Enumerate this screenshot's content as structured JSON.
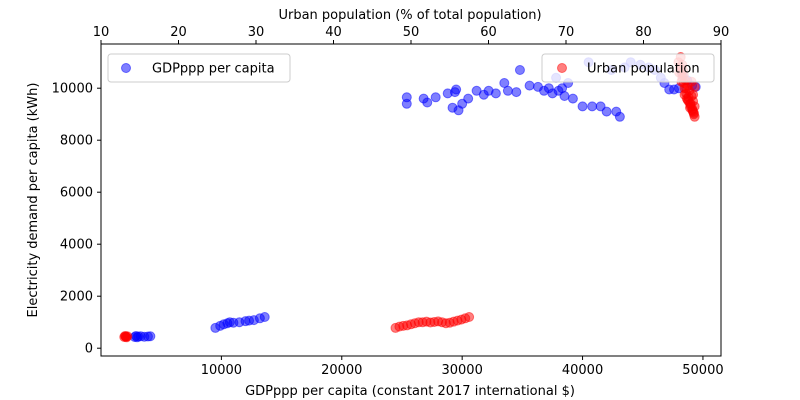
{
  "chart_data": {
    "type": "scatter",
    "title": "",
    "top_title_partial": "[ ]",
    "xlabel": "GDPppp per capita (constant 2017 international $)",
    "x2label": "Urban population (% of total population)",
    "ylabel": "Electricity demand per capita (kWh)",
    "xlim": [
      0,
      51500
    ],
    "x2lim": [
      10,
      90
    ],
    "ylim": [
      -300,
      11700
    ],
    "xticks": [
      10000,
      20000,
      30000,
      40000,
      50000
    ],
    "x2ticks": [
      10,
      20,
      30,
      40,
      50,
      60,
      70,
      80,
      90
    ],
    "yticks": [
      0,
      2000,
      4000,
      6000,
      8000,
      10000
    ],
    "grid": false,
    "legends": [
      {
        "placement": "upper-left",
        "series": "GDPppp per capita"
      },
      {
        "placement": "upper-right",
        "series": "Urban population"
      }
    ],
    "series": [
      {
        "name": "GDPppp per capita",
        "color": "#0000ff",
        "axis": "bottom",
        "points": [
          [
            2800,
            430
          ],
          [
            2900,
            470
          ],
          [
            3100,
            450
          ],
          [
            3300,
            460
          ],
          [
            3600,
            440
          ],
          [
            3900,
            450
          ],
          [
            4100,
            460
          ],
          [
            3000,
            420
          ],
          [
            9500,
            780
          ],
          [
            9900,
            860
          ],
          [
            10200,
            920
          ],
          [
            10500,
            960
          ],
          [
            10700,
            1000
          ],
          [
            11000,
            980
          ],
          [
            11500,
            1000
          ],
          [
            12000,
            1040
          ],
          [
            12300,
            1060
          ],
          [
            12700,
            1080
          ],
          [
            13200,
            1150
          ],
          [
            13600,
            1200
          ],
          [
            25400,
            9400
          ],
          [
            25400,
            9650
          ],
          [
            26800,
            9600
          ],
          [
            27100,
            9450
          ],
          [
            27800,
            9650
          ],
          [
            28800,
            9800
          ],
          [
            29200,
            9250
          ],
          [
            29400,
            9850
          ],
          [
            29500,
            9950
          ],
          [
            29700,
            9150
          ],
          [
            30000,
            9400
          ],
          [
            30500,
            9600
          ],
          [
            31200,
            9900
          ],
          [
            31800,
            9750
          ],
          [
            32200,
            9900
          ],
          [
            32800,
            9800
          ],
          [
            33500,
            10200
          ],
          [
            33800,
            9900
          ],
          [
            34500,
            9850
          ],
          [
            34800,
            10700
          ],
          [
            35600,
            10100
          ],
          [
            36300,
            10050
          ],
          [
            36800,
            9900
          ],
          [
            37200,
            10000
          ],
          [
            37500,
            9800
          ],
          [
            37800,
            10400
          ],
          [
            38000,
            9900
          ],
          [
            38300,
            10000
          ],
          [
            38500,
            9700
          ],
          [
            38800,
            10200
          ],
          [
            39200,
            9600
          ],
          [
            40000,
            9300
          ],
          [
            40500,
            11000
          ],
          [
            40800,
            9300
          ],
          [
            41500,
            9300
          ],
          [
            42000,
            9100
          ],
          [
            42400,
            10700
          ],
          [
            42800,
            9100
          ],
          [
            43100,
            8900
          ],
          [
            43500,
            10800
          ],
          [
            44000,
            11000
          ],
          [
            44800,
            10900
          ],
          [
            45500,
            10800
          ],
          [
            46000,
            10700
          ],
          [
            46500,
            10400
          ],
          [
            46800,
            10200
          ],
          [
            47200,
            9950
          ],
          [
            47600,
            9950
          ],
          [
            48000,
            10000
          ],
          [
            48300,
            10500
          ],
          [
            48700,
            10300
          ],
          [
            49100,
            10100
          ],
          [
            49400,
            10050
          ]
        ]
      },
      {
        "name": "Urban population",
        "color": "#ff0000",
        "axis": "top",
        "points": [
          [
            13.0,
            430
          ],
          [
            13.1,
            470
          ],
          [
            13.2,
            450
          ],
          [
            13.3,
            420
          ],
          [
            13.4,
            460
          ],
          [
            13.2,
            440
          ],
          [
            48.0,
            780
          ],
          [
            48.5,
            830
          ],
          [
            49.0,
            860
          ],
          [
            49.5,
            880
          ],
          [
            50.0,
            920
          ],
          [
            50.5,
            960
          ],
          [
            51.0,
            1000
          ],
          [
            51.5,
            1000
          ],
          [
            52.0,
            1020
          ],
          [
            52.5,
            990
          ],
          [
            53.0,
            1010
          ],
          [
            53.5,
            1030
          ],
          [
            54.0,
            1000
          ],
          [
            54.5,
            960
          ],
          [
            55.0,
            980
          ],
          [
            55.5,
            1020
          ],
          [
            56.0,
            1060
          ],
          [
            56.5,
            1100
          ],
          [
            57.0,
            1150
          ],
          [
            57.5,
            1200
          ],
          [
            84.5,
            11000
          ],
          [
            84.7,
            10800
          ],
          [
            84.9,
            10600
          ],
          [
            85.0,
            10400
          ],
          [
            85.2,
            10200
          ],
          [
            85.3,
            10000
          ],
          [
            85.5,
            9800
          ],
          [
            85.6,
            9600
          ],
          [
            85.8,
            9500
          ],
          [
            86.0,
            9400
          ],
          [
            86.1,
            9300
          ],
          [
            86.3,
            9200
          ],
          [
            86.4,
            9100
          ],
          [
            86.5,
            9000
          ],
          [
            86.6,
            8900
          ],
          [
            85.1,
            10700
          ],
          [
            85.4,
            10300
          ],
          [
            85.7,
            10100
          ],
          [
            85.9,
            9900
          ],
          [
            86.2,
            9700
          ],
          [
            86.4,
            9500
          ],
          [
            86.6,
            9300
          ],
          [
            84.8,
            11200
          ],
          [
            85.0,
            10900
          ],
          [
            85.2,
            10500
          ],
          [
            85.5,
            10000
          ],
          [
            85.8,
            9650
          ],
          [
            86.1,
            9400
          ],
          [
            86.3,
            9150
          ],
          [
            86.5,
            9050
          ],
          [
            84.6,
            10600
          ],
          [
            84.9,
            10250
          ],
          [
            85.3,
            9750
          ],
          [
            85.7,
            9550
          ],
          [
            86.0,
            9250
          ],
          [
            86.4,
            9750
          ],
          [
            86.6,
            10050
          ],
          [
            86.2,
            10250
          ]
        ]
      }
    ]
  }
}
